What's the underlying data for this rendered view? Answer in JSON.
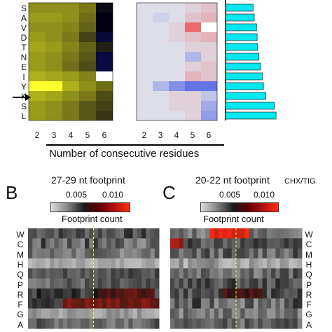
{
  "top": {
    "row_labels": [
      "S",
      "A",
      "V",
      "D",
      "T",
      "N",
      "E",
      "I",
      "Y",
      "K",
      "S",
      "L"
    ],
    "x_ticks": [
      "2",
      "3",
      "4",
      "5",
      "6"
    ],
    "x_ticks_right": [
      "2",
      "3",
      "4",
      "5",
      "6"
    ],
    "axis_label": "Number of consecutive residues",
    "highlight_row": "K",
    "yellow_heatmap": [
      [
        0.35,
        0.35,
        0.35,
        0.45,
        0.95
      ],
      [
        0.3,
        0.3,
        0.35,
        0.5,
        1.0
      ],
      [
        0.35,
        0.35,
        0.4,
        0.55,
        1.0
      ],
      [
        0.3,
        0.35,
        0.45,
        0.7,
        0.9
      ],
      [
        0.25,
        0.3,
        0.4,
        0.55,
        0.85
      ],
      [
        0.3,
        0.35,
        0.45,
        0.6,
        0.9
      ],
      [
        0.3,
        0.35,
        0.5,
        0.65,
        0.95
      ],
      [
        0.2,
        0.25,
        0.3,
        0.4,
        0.05
      ],
      [
        0.05,
        0.05,
        0.2,
        0.35,
        0.5
      ],
      [
        0.2,
        0.25,
        0.35,
        0.45,
        0.65
      ],
      [
        0.3,
        0.35,
        0.45,
        0.6,
        0.7
      ],
      [
        0.3,
        0.35,
        0.45,
        0.6,
        0.75
      ]
    ],
    "diff_heatmap": [
      [
        0.0,
        0.0,
        0.0,
        0.1,
        0.2
      ],
      [
        0.0,
        -0.1,
        0.0,
        0.2,
        0.3
      ],
      [
        0.0,
        0.0,
        0.1,
        0.8,
        1.0
      ],
      [
        0.0,
        0.0,
        0.1,
        0.2,
        0.3
      ],
      [
        0.0,
        0.0,
        0.0,
        0.1,
        0.1
      ],
      [
        0.0,
        0.0,
        0.0,
        -0.3,
        0.1
      ],
      [
        0.0,
        0.0,
        0.0,
        0.1,
        0.2
      ],
      [
        0.0,
        0.0,
        0.0,
        0.3,
        0.2
      ],
      [
        0.0,
        -0.3,
        -0.6,
        -0.8,
        -0.8
      ],
      [
        0.0,
        0.0,
        0.1,
        0.1,
        -0.2
      ],
      [
        0.0,
        0.0,
        0.1,
        0.1,
        -0.4
      ],
      [
        0.0,
        0.0,
        0.0,
        0.1,
        -0.5
      ]
    ],
    "bars": [
      0.48,
      0.5,
      0.54,
      0.55,
      0.56,
      0.58,
      0.61,
      0.64,
      0.66,
      0.7,
      0.85,
      0.88
    ]
  },
  "panels": {
    "b": {
      "letter": "B",
      "title": "27-29 nt footprint",
      "scale_ticks": [
        "0.005",
        "0.010"
      ],
      "scale_label": "Footprint count"
    },
    "c": {
      "letter": "C",
      "title": "20-22 nt footprint",
      "corner": "CHX/TIG",
      "scale_ticks": [
        "0.005",
        "0.010"
      ],
      "scale_label": "Footprint count"
    },
    "b_rows": [
      "W",
      "C",
      "M",
      "H",
      "Q",
      "P",
      "R",
      "F",
      "G",
      "A"
    ],
    "c_rows": [
      "W",
      "C",
      "M",
      "H",
      "Q",
      "P",
      "R",
      "F",
      "G",
      "A"
    ]
  }
}
